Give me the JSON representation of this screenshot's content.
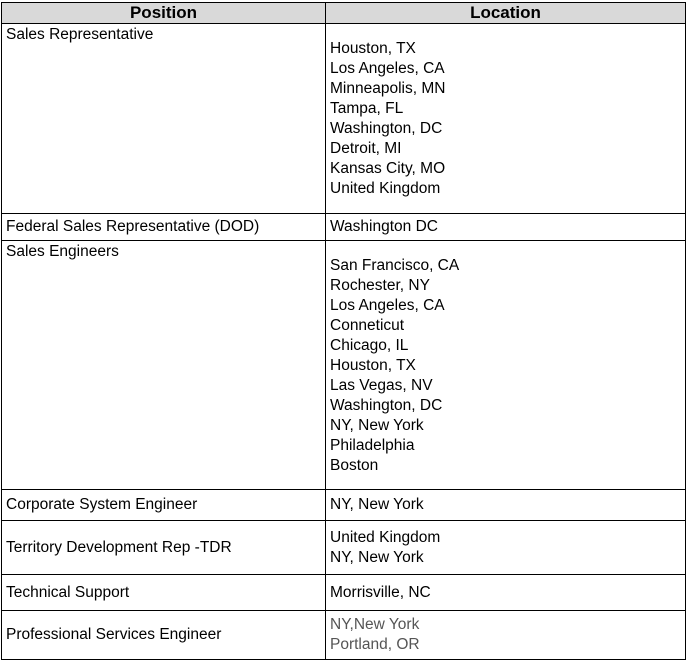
{
  "headers": {
    "position": "Position",
    "location": "Location"
  },
  "rows": [
    {
      "position": "Sales Representative",
      "locations": [
        "Houston, TX",
        "Los Angeles, CA",
        "Minneapolis, MN",
        "Tampa, FL",
        "Washington, DC",
        "Detroit, MI",
        "Kansas City, MO",
        "United Kingdom"
      ]
    },
    {
      "position": "Federal Sales Representative (DOD)",
      "locations": [
        "Washington DC"
      ]
    },
    {
      "position": "Sales Engineers",
      "locations": [
        "San Francisco, CA",
        "Rochester, NY",
        "Los Angeles, CA",
        "Conneticut",
        "Chicago, IL",
        "Houston, TX",
        "Las Vegas, NV",
        "Washington, DC",
        "NY, New York",
        "Philadelphia",
        "Boston"
      ]
    },
    {
      "position": "Corporate System Engineer",
      "locations": [
        "NY, New York"
      ]
    },
    {
      "position": "Territory Development Rep -TDR",
      "locations": [
        "United Kingdom",
        "NY, New York"
      ]
    },
    {
      "position": "Technical Support",
      "locations": [
        "Morrisville, NC"
      ]
    },
    {
      "position": "Professional Services Engineer",
      "locations": [
        "NY,New York",
        "Portland, OR"
      ]
    }
  ]
}
